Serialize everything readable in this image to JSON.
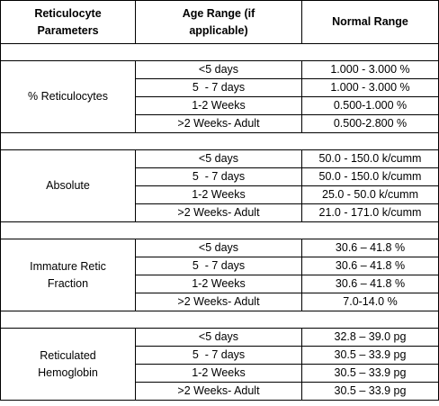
{
  "header": [
    [
      "Reticulocyte",
      "Parameters"
    ],
    [
      "Age Range (if",
      "applicable)"
    ],
    [
      "Normal Range"
    ]
  ],
  "groups": [
    {
      "parameter": [
        "% Reticulocytes"
      ],
      "rows": [
        [
          "<5 days",
          "1.000 - 3.000 %"
        ],
        [
          "5  - 7 days",
          "1.000 - 3.000 %"
        ],
        [
          "1-2 Weeks",
          "0.500-1.000 %"
        ],
        [
          ">2 Weeks- Adult",
          "0.500-2.800 %"
        ]
      ]
    },
    {
      "parameter": [
        "Absolute"
      ],
      "rows": [
        [
          "<5 days",
          "50.0 - 150.0 k/cumm"
        ],
        [
          "5  - 7 days",
          "50.0 - 150.0 k/cumm"
        ],
        [
          "1-2 Weeks",
          "25.0 - 50.0 k/cumm"
        ],
        [
          ">2 Weeks- Adult",
          "21.0 - 171.0 k/cumm"
        ]
      ]
    },
    {
      "parameter": [
        "Immature Retic",
        "Fraction"
      ],
      "rows": [
        [
          "<5 days",
          "30.6 – 41.8 %"
        ],
        [
          "5  - 7 days",
          "30.6 – 41.8 %"
        ],
        [
          "1-2 Weeks",
          "30.6 – 41.8 %"
        ],
        [
          ">2 Weeks- Adult",
          "7.0-14.0 %"
        ]
      ]
    },
    {
      "parameter": [
        "Reticulated",
        "Hemoglobin"
      ],
      "rows": [
        [
          "<5 days",
          "32.8 – 39.0 pg"
        ],
        [
          "5  - 7 days",
          "30.5 – 33.9 pg"
        ],
        [
          "1-2 Weeks",
          "30.5 – 33.9 pg"
        ],
        [
          ">2 Weeks- Adult",
          "30.5 – 33.9 pg"
        ]
      ]
    }
  ]
}
